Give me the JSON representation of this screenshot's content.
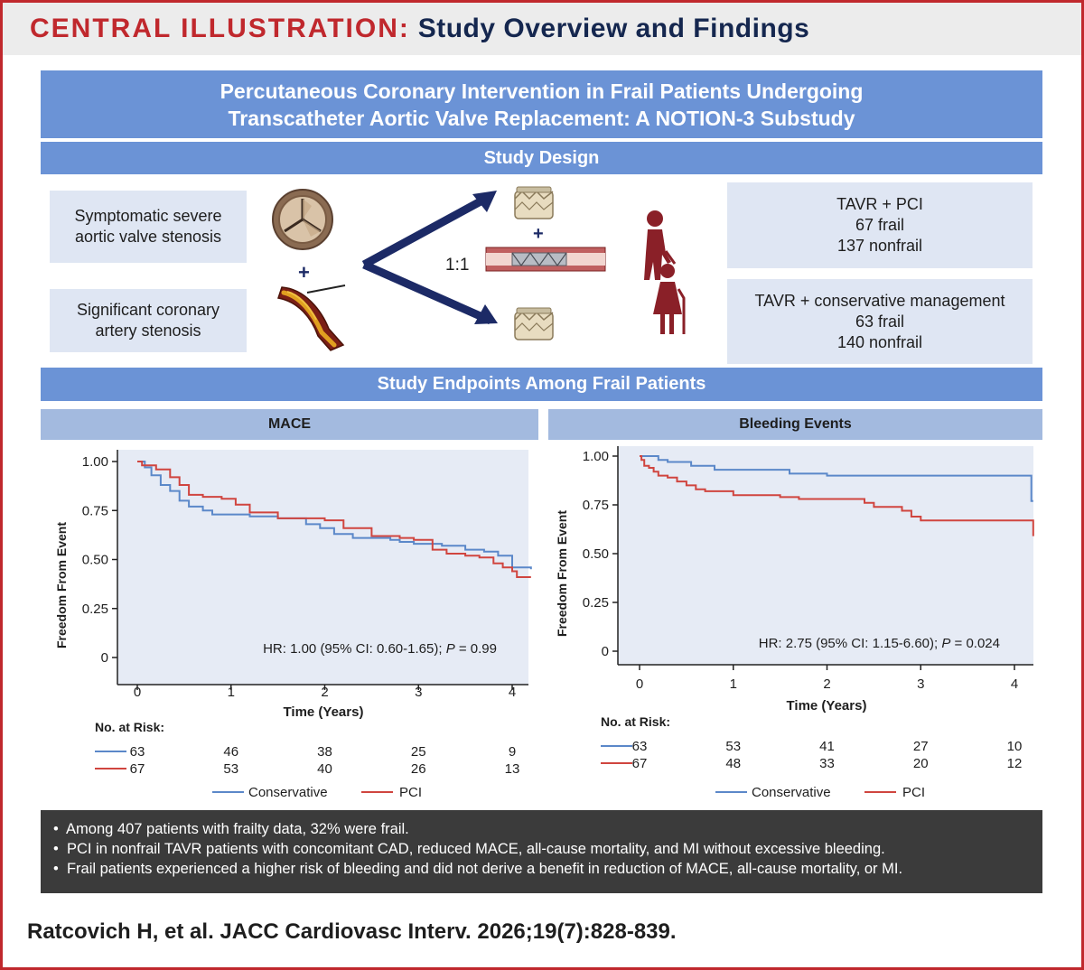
{
  "header": {
    "label": "CENTRAL ILLUSTRATION:",
    "title": "Study Overview and Findings"
  },
  "study_title": {
    "line1": "Percutaneous Coronary Intervention in Frail Patients Undergoing",
    "line2": "Transcatheter Aortic Valve Replacement: A NOTION-3 Substudy"
  },
  "design": {
    "header": "Study Design",
    "condition1": {
      "line1": "Symptomatic severe",
      "line2": "aortic valve stenosis"
    },
    "condition2": {
      "line1": "Significant coronary",
      "line2": "artery stenosis"
    },
    "plus": "+",
    "ratio": "1:1",
    "arm1": {
      "line1": "TAVR + PCI",
      "line2": "67 frail",
      "line3": "137 nonfrail"
    },
    "arm2": {
      "line1": "TAVR + conservative management",
      "line2": "63 frail",
      "line3": "140 nonfrail"
    }
  },
  "endpoints_header": "Study Endpoints Among Frail Patients",
  "colors": {
    "conservative": "#5b88c9",
    "pci": "#d0453f",
    "accent_red": "#c0282d",
    "navy": "#15274f",
    "bar_blue": "#6b93d6",
    "bar_light": "#a3badf"
  },
  "chart_data": [
    {
      "type": "line",
      "title": "MACE",
      "xlabel": "Time (Years)",
      "ylabel": "Freedom From Event",
      "xlim": [
        0,
        4.2
      ],
      "ylim": [
        0,
        1.0
      ],
      "x_ticks": [
        "0",
        "1",
        "2",
        "3",
        "4"
      ],
      "y_ticks": [
        "1.00",
        "0.75",
        "0.50",
        "0.25",
        "0"
      ],
      "annotation": {
        "prefix": "HR: 1.00 (95% CI: 0.60-1.65); ",
        "p_label": "P",
        "suffix": " = 0.99"
      },
      "series": [
        {
          "name": "Conservative",
          "color": "#5b88c9",
          "x": [
            0,
            0.08,
            0.15,
            0.25,
            0.35,
            0.45,
            0.55,
            0.7,
            0.8,
            1.0,
            1.2,
            1.5,
            1.8,
            1.95,
            2.1,
            2.3,
            2.5,
            2.7,
            2.8,
            2.95,
            3.1,
            3.25,
            3.5,
            3.7,
            3.85,
            4.0,
            4.2
          ],
          "y": [
            1.0,
            0.97,
            0.93,
            0.88,
            0.85,
            0.8,
            0.77,
            0.75,
            0.73,
            0.73,
            0.72,
            0.71,
            0.68,
            0.66,
            0.63,
            0.61,
            0.61,
            0.6,
            0.59,
            0.58,
            0.58,
            0.57,
            0.55,
            0.54,
            0.52,
            0.46,
            0.45
          ]
        },
        {
          "name": "PCI",
          "color": "#d0453f",
          "x": [
            0,
            0.05,
            0.2,
            0.35,
            0.45,
            0.55,
            0.7,
            0.9,
            1.05,
            1.2,
            1.5,
            1.65,
            2.0,
            2.2,
            2.5,
            2.8,
            2.95,
            3.15,
            3.3,
            3.5,
            3.65,
            3.8,
            3.9,
            4.0,
            4.05,
            4.2
          ],
          "y": [
            1.0,
            0.98,
            0.96,
            0.92,
            0.88,
            0.83,
            0.82,
            0.81,
            0.78,
            0.74,
            0.71,
            0.71,
            0.7,
            0.66,
            0.62,
            0.61,
            0.6,
            0.55,
            0.53,
            0.52,
            0.51,
            0.48,
            0.46,
            0.44,
            0.41,
            0.41
          ]
        }
      ],
      "risk_table": {
        "label": "No. at Risk:",
        "rows": [
          {
            "name": "Conservative",
            "values": [
              "63",
              "46",
              "38",
              "25",
              "9"
            ]
          },
          {
            "name": "PCI",
            "values": [
              "67",
              "53",
              "40",
              "26",
              "13"
            ]
          }
        ]
      },
      "legend": {
        "placement": "bottom",
        "items": [
          "Conservative",
          "PCI"
        ]
      }
    },
    {
      "type": "line",
      "title": "Bleeding Events",
      "xlabel": "Time (Years)",
      "ylabel": "Freedom From Event",
      "xlim": [
        0,
        4.2
      ],
      "ylim": [
        0,
        1.0
      ],
      "x_ticks": [
        "0",
        "1",
        "2",
        "3",
        "4"
      ],
      "y_ticks": [
        "1.00",
        "0.75",
        "0.50",
        "0.25",
        "0"
      ],
      "annotation": {
        "prefix": "HR: 2.75 (95% CI: 1.15-6.60); ",
        "p_label": "P",
        "suffix": " = 0.024"
      },
      "series": [
        {
          "name": "Conservative",
          "color": "#5b88c9",
          "x": [
            0,
            0.2,
            0.3,
            0.55,
            0.8,
            1.0,
            1.2,
            1.5,
            1.6,
            2.0,
            3.0,
            4.0,
            4.18,
            4.2
          ],
          "y": [
            1.0,
            0.98,
            0.97,
            0.95,
            0.93,
            0.93,
            0.93,
            0.93,
            0.91,
            0.9,
            0.9,
            0.9,
            0.77,
            0.77
          ]
        },
        {
          "name": "PCI",
          "color": "#d0453f",
          "x": [
            0,
            0.02,
            0.05,
            0.1,
            0.15,
            0.2,
            0.3,
            0.4,
            0.5,
            0.6,
            0.7,
            1.0,
            1.5,
            1.7,
            2.0,
            2.4,
            2.5,
            2.8,
            2.9,
            3.0,
            3.5,
            4.0,
            4.2
          ],
          "y": [
            1.0,
            0.98,
            0.95,
            0.94,
            0.92,
            0.9,
            0.89,
            0.87,
            0.85,
            0.83,
            0.82,
            0.8,
            0.79,
            0.78,
            0.78,
            0.76,
            0.74,
            0.72,
            0.69,
            0.67,
            0.67,
            0.67,
            0.59
          ]
        }
      ],
      "risk_table": {
        "label": "No. at Risk:",
        "rows": [
          {
            "name": "Conservative",
            "values": [
              "63",
              "53",
              "41",
              "27",
              "10"
            ]
          },
          {
            "name": "PCI",
            "values": [
              "67",
              "48",
              "33",
              "20",
              "12"
            ]
          }
        ]
      },
      "legend": {
        "placement": "bottom",
        "items": [
          "Conservative",
          "PCI"
        ]
      }
    }
  ],
  "findings": [
    "Among 407 patients with frailty data, 32% were frail.",
    "PCI in nonfrail TAVR patients with concomitant CAD, reduced MACE, all-cause mortality, and MI without excessive bleeding.",
    "Frail patients experienced a higher risk of bleeding and did not derive a benefit in reduction of MACE, all-cause mortality, or MI."
  ],
  "bullet": "•",
  "citation": "Ratcovich H, et al. JACC Cardiovasc Interv. 2026;19(7):828-839."
}
